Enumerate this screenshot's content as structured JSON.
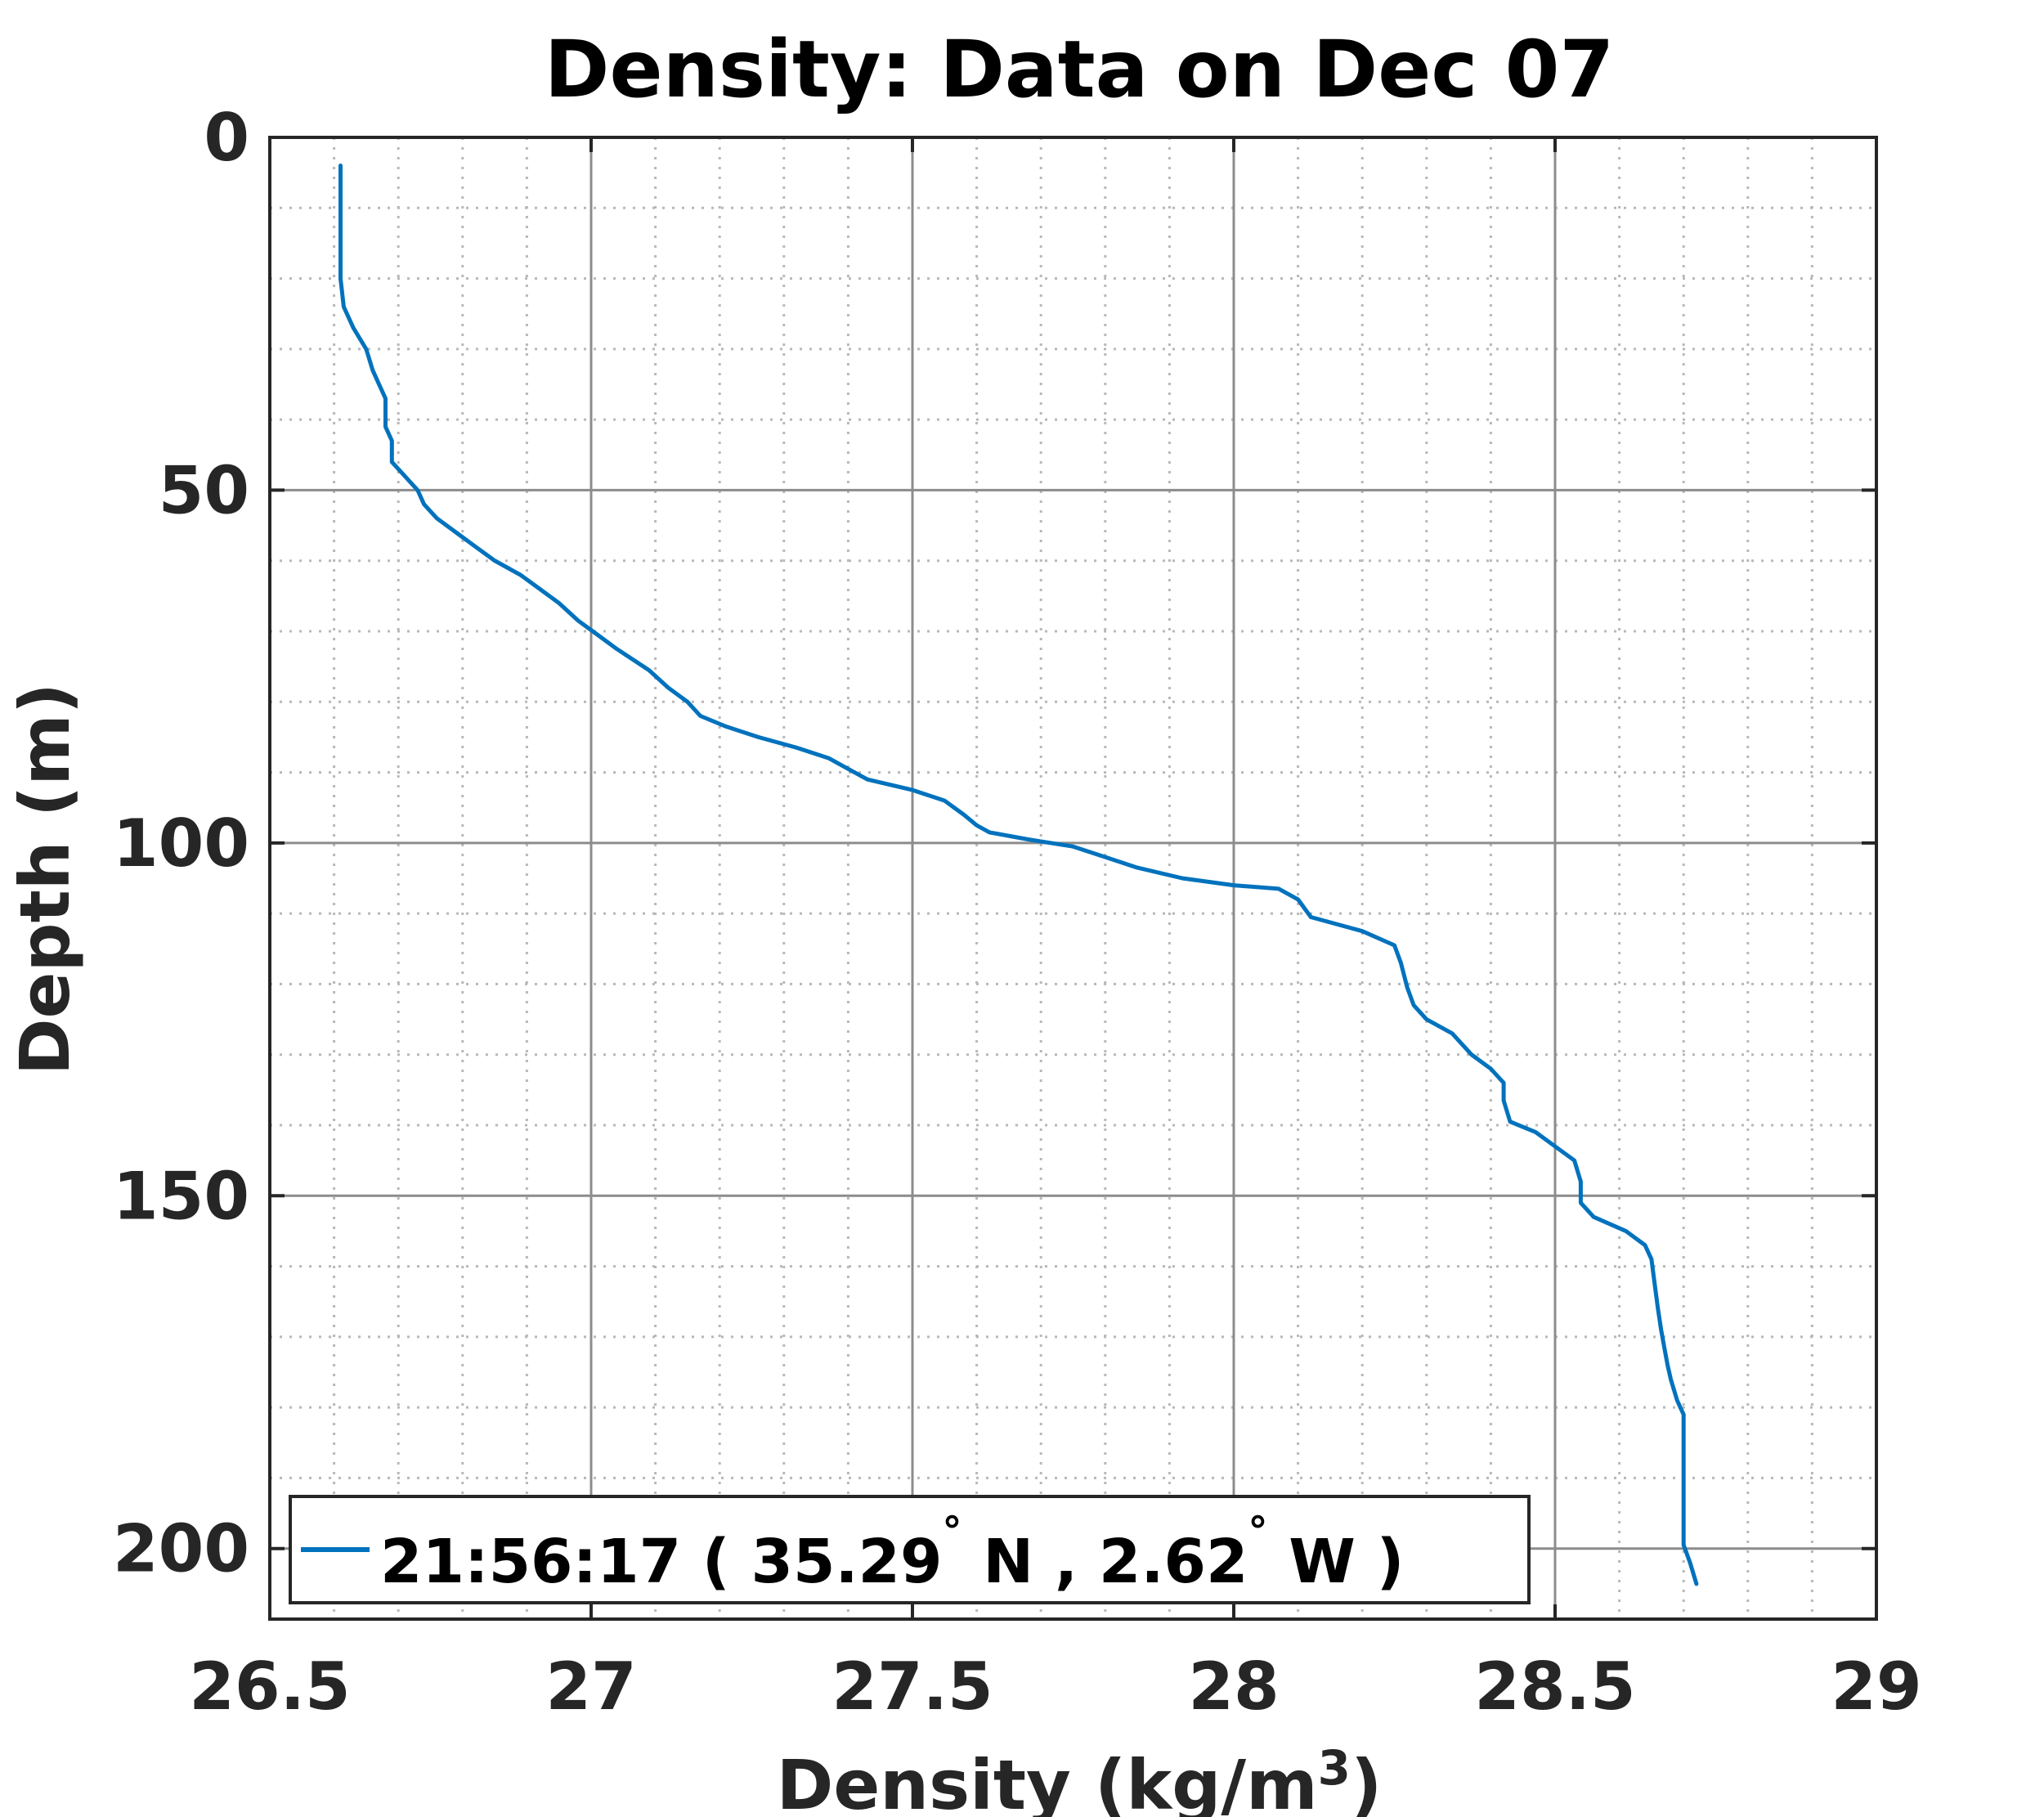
{
  "chart_data": {
    "type": "line",
    "title": "Density: Data on Dec 07",
    "xlabel": "Density (kg/m",
    "xlabel_superscript": "3",
    "xlabel_suffix": ")",
    "ylabel": "Depth (m)",
    "xlim": [
      26.5,
      29
    ],
    "ylim": [
      0,
      210
    ],
    "y_reversed": true,
    "xticks": [
      26.5,
      27,
      27.5,
      28,
      28.5,
      29
    ],
    "xtick_labels": [
      "26.5",
      "27",
      "27.5",
      "28",
      "28.5",
      "29"
    ],
    "yticks": [
      0,
      50,
      100,
      150,
      200
    ],
    "ytick_labels": [
      "0",
      "50",
      "100",
      "150",
      "200"
    ],
    "grid": true,
    "minor_grid": true,
    "legend_location": "bottom-left",
    "series": [
      {
        "name": "21:56:17 ( 35.29° N , 2.62° W )",
        "legend_parts": [
          "21:56:17 ( 35.29",
          "°",
          " N , 2.62",
          "°",
          " W )"
        ],
        "color": "#0072BD",
        "x": [
          26.61,
          26.61,
          26.61,
          26.61,
          26.615,
          26.63,
          26.65,
          26.66,
          26.67,
          26.68,
          26.68,
          26.69,
          26.69,
          26.71,
          26.73,
          26.74,
          26.76,
          26.79,
          26.82,
          26.85,
          26.86,
          26.89,
          26.92,
          26.95,
          26.98,
          27.01,
          27.04,
          27.09,
          27.12,
          27.15,
          27.17,
          27.21,
          27.26,
          27.32,
          27.37,
          27.4,
          27.43,
          27.5,
          27.55,
          27.58,
          27.6,
          27.62,
          27.68,
          27.75,
          27.8,
          27.85,
          27.92,
          28.0,
          28.07,
          28.1,
          28.12,
          28.2,
          28.25,
          28.26,
          28.27,
          28.28,
          28.3,
          28.34,
          28.37,
          28.4,
          28.42,
          28.42,
          28.43,
          28.47,
          28.5,
          28.53,
          28.54,
          28.54,
          28.56,
          28.61,
          28.64,
          28.65,
          28.655,
          28.66,
          28.665,
          28.67,
          28.675,
          28.68,
          28.69,
          28.7,
          28.7,
          28.7,
          28.7,
          28.7,
          28.71,
          28.72
        ],
        "y": [
          4,
          10,
          15,
          20,
          24,
          27,
          30,
          33,
          35,
          37,
          41,
          43,
          46,
          48,
          50,
          52,
          54,
          56,
          58,
          60,
          60.5,
          62,
          64,
          66,
          68.5,
          70.5,
          72.5,
          75.5,
          78,
          80,
          82,
          83.5,
          85,
          86.5,
          88,
          89.5,
          91,
          92.5,
          94,
          96,
          97.5,
          98.5,
          99.5,
          100.5,
          102,
          103.5,
          105,
          106,
          106.5,
          108,
          110.5,
          112.5,
          114.5,
          117,
          120.5,
          123,
          125,
          127,
          130,
          132,
          134,
          136.5,
          139.5,
          141,
          143,
          145,
          148,
          151,
          153,
          155,
          157,
          159,
          162.5,
          166,
          169,
          171.5,
          174,
          176,
          179,
          181,
          186,
          191,
          196,
          199.5,
          202,
          205
        ]
      }
    ]
  }
}
